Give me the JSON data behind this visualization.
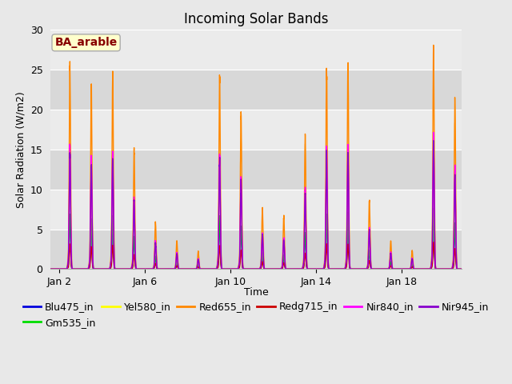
{
  "title": "Incoming Solar Bands",
  "xlabel": "Time",
  "ylabel": "Solar Radiation (W/m2)",
  "annotation": "BA_arable",
  "ylim": [
    0,
    30
  ],
  "series": [
    {
      "label": "Blu475_in",
      "color": "#0000dd",
      "lw": 1.0
    },
    {
      "label": "Gm535_in",
      "color": "#00dd00",
      "lw": 1.0
    },
    {
      "label": "Yel580_in",
      "color": "#ffff00",
      "lw": 1.0
    },
    {
      "label": "Red655_in",
      "color": "#ff8800",
      "lw": 1.0
    },
    {
      "label": "Redg715_in",
      "color": "#cc0000",
      "lw": 1.0
    },
    {
      "label": "Nir840_in",
      "color": "#ff00ff",
      "lw": 1.0
    },
    {
      "label": "Nir945_in",
      "color": "#8800cc",
      "lw": 1.0
    }
  ],
  "bg_color": "#e8e8e8",
  "plot_bg_light": "#ebebeb",
  "plot_bg_dark": "#d8d8d8",
  "annotation_bg": "#ffffcc",
  "annotation_text_color": "#880000",
  "annotation_edge_color": "#aaaaaa",
  "grid_color": "#ffffff",
  "title_fontsize": 12,
  "axis_fontsize": 9,
  "tick_fontsize": 9,
  "legend_fontsize": 9,
  "tick_days": [
    2,
    6,
    10,
    14,
    18
  ],
  "tick_labels": [
    "Jan 2",
    "Jan 6",
    "Jan 10",
    "Jan 14",
    "Jan 18"
  ],
  "yticks": [
    0,
    5,
    10,
    15,
    20,
    25,
    30
  ],
  "xlim": [
    1.6,
    20.8
  ],
  "day_peaks": {
    "2": 25.6,
    "3": 23.0,
    "4": 24.5,
    "5": 15.0,
    "6": 5.8,
    "7": 3.5,
    "8": 2.2,
    "9": 24.3,
    "10": 19.5,
    "11": 7.6,
    "12": 6.5,
    "13": 16.8,
    "14": 25.2,
    "15": 25.7,
    "16": 8.7,
    "17": 3.5,
    "18": 2.3,
    "19": 28.3,
    "20": 21.0
  },
  "band_scales": {
    "Blu475_in": 0.26,
    "Gm535_in": 0.27,
    "Yel580_in": 0.57,
    "Red655_in": 1.0,
    "Redg715_in": 0.12,
    "Nir840_in": 0.6,
    "Nir945_in": 0.56
  }
}
